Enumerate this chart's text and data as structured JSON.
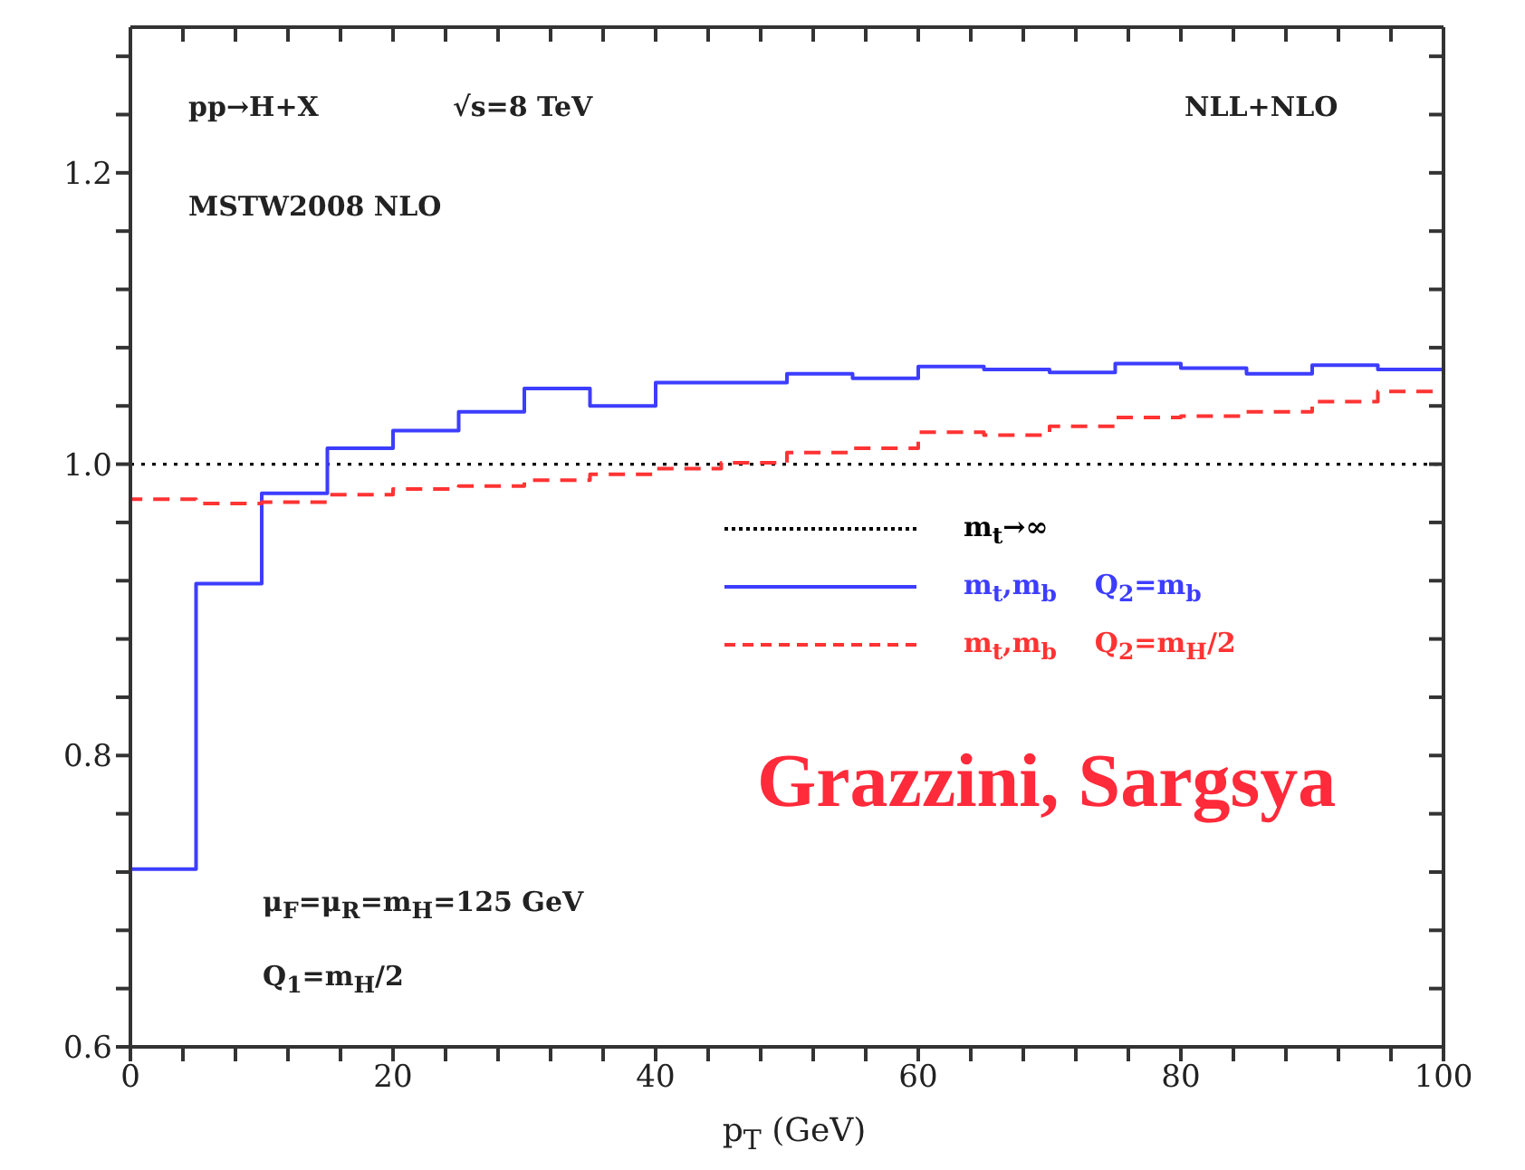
{
  "chart_data": {
    "type": "step",
    "xlabel": "p$_{T}$ (GeV)",
    "xlim": [
      0,
      100
    ],
    "xticks": [
      0,
      {
        "value": 4,
        "label": null
      },
      {
        "value": 8,
        "label": null
      },
      {
        "value": 12,
        "label": null
      },
      {
        "value": 16,
        "label": null
      },
      20,
      {
        "value": 24,
        "label": null
      },
      {
        "value": 28,
        "label": null
      },
      {
        "value": 32,
        "label": null
      },
      {
        "value": 36,
        "label": null
      },
      40,
      {
        "value": 44,
        "label": null
      },
      {
        "value": 48,
        "label": null
      },
      {
        "value": 52,
        "label": null
      },
      {
        "value": 56,
        "label": null
      },
      60,
      {
        "value": 64,
        "label": null
      },
      {
        "value": 68,
        "label": null
      },
      {
        "value": 72,
        "label": null
      },
      {
        "value": 76,
        "label": null
      },
      80,
      {
        "value": 84,
        "label": null
      },
      {
        "value": 88,
        "label": null
      },
      {
        "value": 92,
        "label": null
      },
      {
        "value": 96,
        "label": null
      },
      100
    ],
    "ylim": [
      0.6,
      1.3
    ],
    "yticks": [
      0.6,
      {
        "value": 0.64,
        "label": null
      },
      {
        "value": 0.68,
        "label": null
      },
      {
        "value": 0.72,
        "label": null
      },
      {
        "value": 0.76,
        "label": null
      },
      0.8,
      {
        "value": 0.84,
        "label": null
      },
      {
        "value": 0.88,
        "label": null
      },
      {
        "value": 0.92,
        "label": null
      },
      {
        "value": 0.96,
        "label": null
      },
      {
        "value": 1.0,
        "label": "1.0"
      },
      {
        "value": 1.04,
        "label": null
      },
      {
        "value": 1.08,
        "label": null
      },
      {
        "value": 1.12,
        "label": null
      },
      {
        "value": 1.16,
        "label": null
      },
      1.2,
      {
        "value": 1.24,
        "label": null
      },
      {
        "value": 1.28,
        "label": null
      }
    ],
    "grid": false,
    "legend": "right",
    "marker": "none",
    "series": [
      {
        "name": "m$_{t}$→∞",
        "type": "line",
        "line_style": "dotted",
        "color": "#000000",
        "x": [
          0,
          100
        ],
        "values": [
          1.0,
          1.0
        ]
      },
      {
        "name": "m$_{t}$,m$_{b}$    Q$_{2}$=m$_{b}$",
        "type": "step",
        "line_style": "solid",
        "color": "#3d3dff",
        "x": [
          0,
          0,
          5,
          10,
          15,
          20,
          25,
          30,
          35,
          40,
          45,
          50,
          55,
          60,
          65,
          70,
          75,
          80,
          85,
          90,
          95,
          100
        ],
        "values": [
          0.6,
          0.722,
          0.918,
          0.98,
          1.011,
          1.023,
          1.036,
          1.052,
          1.04,
          1.056,
          1.056,
          1.062,
          1.059,
          1.067,
          1.065,
          1.063,
          1.069,
          1.066,
          1.062,
          1.068,
          1.065,
          1.065
        ]
      },
      {
        "name": "m$_{t}$,m$_{b}$    Q$_{2}$=m$_{H}$/2",
        "type": "step",
        "line_style": "dashed",
        "color": "#ff3333",
        "x": [
          0,
          0,
          5,
          10,
          15,
          20,
          25,
          30,
          35,
          40,
          45,
          50,
          55,
          60,
          65,
          70,
          75,
          80,
          85,
          90,
          95,
          100
        ],
        "values": [
          0.6,
          0.976,
          0.973,
          0.974,
          0.979,
          0.983,
          0.985,
          0.989,
          0.993,
          0.997,
          1.001,
          1.008,
          1.011,
          1.022,
          1.02,
          1.026,
          1.032,
          1.033,
          1.036,
          1.043,
          1.05,
          1.05
        ]
      }
    ],
    "annotations": [
      "pp→H+X",
      "√s=8 TeV",
      "MSTW2008 NLO",
      "NLL+NLO",
      "μ$_{F}$=μ$_{R}$=m$_{H}$=125 GeV",
      "Q$_{1}$=m$_{H}$/2",
      "Grazzini, Sargsya"
    ]
  }
}
